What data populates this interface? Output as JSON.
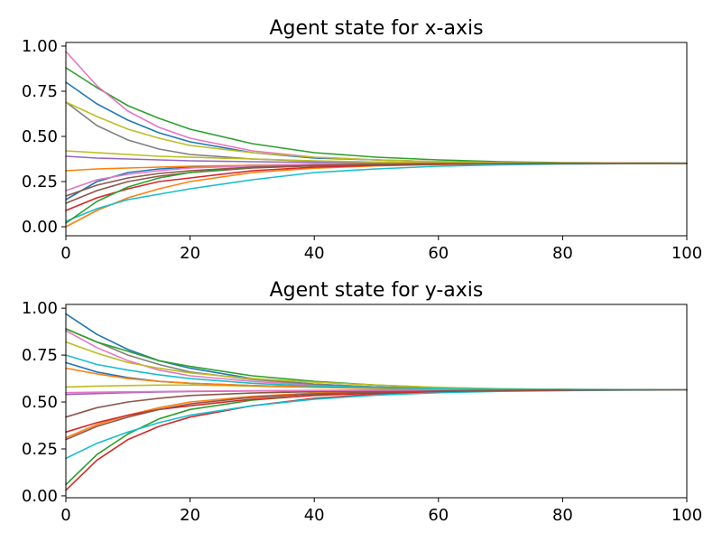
{
  "palette": [
    "#1f77b4",
    "#ff7f0e",
    "#2ca02c",
    "#d62728",
    "#9467bd",
    "#8c564b",
    "#e377c2",
    "#7f7f7f",
    "#bcbd22",
    "#17becf"
  ],
  "chart_data": [
    {
      "type": "line",
      "title": "Agent state for x-axis",
      "xlabel": "",
      "ylabel": "",
      "xlim": [
        0,
        100
      ],
      "ylim": [
        -0.05,
        1.02
      ],
      "xticks": [
        0,
        20,
        40,
        60,
        80,
        100
      ],
      "xtick_labels": [
        "0",
        "20",
        "40",
        "60",
        "80",
        "100"
      ],
      "yticks": [
        0,
        0.25,
        0.5,
        0.75,
        1.0
      ],
      "ytick_labels": [
        "0.00",
        "0.25",
        "0.50",
        "0.75",
        "1.00"
      ],
      "grid": false,
      "x": [
        0,
        5,
        10,
        15,
        20,
        30,
        40,
        50,
        60,
        70,
        80,
        90,
        100
      ],
      "series": [
        {
          "color": "#1f77b4",
          "values": [
            0.8,
            0.68,
            0.59,
            0.52,
            0.47,
            0.41,
            0.38,
            0.37,
            0.36,
            0.355,
            0.353,
            0.352,
            0.351
          ]
        },
        {
          "color": "#ff7f0e",
          "values": [
            0.0,
            0.09,
            0.16,
            0.21,
            0.25,
            0.3,
            0.324,
            0.337,
            0.344,
            0.348,
            0.35,
            0.351,
            0.351
          ]
        },
        {
          "color": "#2ca02c",
          "values": [
            0.88,
            0.77,
            0.67,
            0.6,
            0.54,
            0.46,
            0.41,
            0.385,
            0.37,
            0.36,
            0.355,
            0.353,
            0.352
          ]
        },
        {
          "color": "#d62728",
          "values": [
            0.09,
            0.16,
            0.21,
            0.25,
            0.27,
            0.31,
            0.33,
            0.34,
            0.346,
            0.349,
            0.35,
            0.351,
            0.351
          ]
        },
        {
          "color": "#9467bd",
          "values": [
            0.39,
            0.38,
            0.375,
            0.37,
            0.365,
            0.36,
            0.356,
            0.354,
            0.352,
            0.352,
            0.351,
            0.351,
            0.351
          ]
        },
        {
          "color": "#8c564b",
          "values": [
            0.13,
            0.2,
            0.25,
            0.28,
            0.3,
            0.325,
            0.337,
            0.344,
            0.347,
            0.349,
            0.35,
            0.351,
            0.351
          ]
        },
        {
          "color": "#e377c2",
          "values": [
            0.97,
            0.78,
            0.64,
            0.55,
            0.49,
            0.42,
            0.385,
            0.37,
            0.36,
            0.355,
            0.353,
            0.352,
            0.351
          ]
        },
        {
          "color": "#7f7f7f",
          "values": [
            0.69,
            0.56,
            0.48,
            0.43,
            0.4,
            0.375,
            0.363,
            0.357,
            0.354,
            0.352,
            0.352,
            0.351,
            0.351
          ]
        },
        {
          "color": "#bcbd22",
          "values": [
            0.42,
            0.41,
            0.4,
            0.39,
            0.385,
            0.375,
            0.365,
            0.358,
            0.355,
            0.353,
            0.352,
            0.351,
            0.351
          ]
        },
        {
          "color": "#17becf",
          "values": [
            0.03,
            0.1,
            0.15,
            0.18,
            0.21,
            0.26,
            0.3,
            0.32,
            0.335,
            0.343,
            0.347,
            0.349,
            0.35
          ]
        },
        {
          "color": "#1f77b4",
          "values": [
            0.15,
            0.25,
            0.3,
            0.32,
            0.33,
            0.34,
            0.345,
            0.348,
            0.35,
            0.35,
            0.351,
            0.351,
            0.351
          ]
        },
        {
          "color": "#ff7f0e",
          "values": [
            0.31,
            0.32,
            0.325,
            0.33,
            0.335,
            0.34,
            0.345,
            0.348,
            0.35,
            0.35,
            0.351,
            0.351,
            0.351
          ]
        },
        {
          "color": "#2ca02c",
          "values": [
            0.02,
            0.14,
            0.22,
            0.27,
            0.3,
            0.33,
            0.342,
            0.347,
            0.349,
            0.35,
            0.351,
            0.351,
            0.351
          ]
        },
        {
          "color": "#e377c2",
          "values": [
            0.2,
            0.26,
            0.29,
            0.31,
            0.325,
            0.337,
            0.344,
            0.348,
            0.35,
            0.35,
            0.351,
            0.351,
            0.351
          ]
        },
        {
          "color": "#bcbd22",
          "values": [
            0.69,
            0.61,
            0.54,
            0.49,
            0.45,
            0.41,
            0.385,
            0.37,
            0.36,
            0.355,
            0.353,
            0.352,
            0.351
          ]
        },
        {
          "color": "#8c564b",
          "values": [
            0.17,
            0.23,
            0.27,
            0.295,
            0.31,
            0.33,
            0.34,
            0.346,
            0.349,
            0.35,
            0.351,
            0.351,
            0.351
          ]
        }
      ]
    },
    {
      "type": "line",
      "title": "Agent state for y-axis",
      "xlabel": "",
      "ylabel": "",
      "xlim": [
        0,
        100
      ],
      "ylim": [
        -0.01,
        1.02
      ],
      "xticks": [
        0,
        20,
        40,
        60,
        80,
        100
      ],
      "xtick_labels": [
        "0",
        "20",
        "40",
        "60",
        "80",
        "100"
      ],
      "yticks": [
        0,
        0.25,
        0.5,
        0.75,
        1.0
      ],
      "ytick_labels": [
        "0.00",
        "0.25",
        "0.50",
        "0.75",
        "1.00"
      ],
      "grid": false,
      "x": [
        0,
        5,
        10,
        15,
        20,
        30,
        40,
        50,
        60,
        70,
        80,
        90,
        100
      ],
      "series": [
        {
          "color": "#1f77b4",
          "values": [
            0.97,
            0.86,
            0.78,
            0.72,
            0.68,
            0.625,
            0.595,
            0.58,
            0.572,
            0.568,
            0.566,
            0.565,
            0.565
          ]
        },
        {
          "color": "#ff7f0e",
          "values": [
            0.31,
            0.38,
            0.43,
            0.47,
            0.5,
            0.53,
            0.548,
            0.556,
            0.561,
            0.563,
            0.564,
            0.565,
            0.565
          ]
        },
        {
          "color": "#2ca02c",
          "values": [
            0.06,
            0.22,
            0.33,
            0.41,
            0.46,
            0.51,
            0.537,
            0.551,
            0.558,
            0.562,
            0.564,
            0.565,
            0.565
          ]
        },
        {
          "color": "#d62728",
          "values": [
            0.03,
            0.19,
            0.3,
            0.37,
            0.42,
            0.48,
            0.52,
            0.542,
            0.554,
            0.56,
            0.563,
            0.564,
            0.565
          ]
        },
        {
          "color": "#9467bd",
          "values": [
            0.54,
            0.545,
            0.55,
            0.553,
            0.556,
            0.559,
            0.561,
            0.563,
            0.564,
            0.564,
            0.565,
            0.565,
            0.565
          ]
        },
        {
          "color": "#8c564b",
          "values": [
            0.42,
            0.47,
            0.5,
            0.52,
            0.535,
            0.548,
            0.555,
            0.559,
            0.562,
            0.563,
            0.564,
            0.565,
            0.565
          ]
        },
        {
          "color": "#e377c2",
          "values": [
            0.88,
            0.79,
            0.72,
            0.67,
            0.64,
            0.61,
            0.59,
            0.578,
            0.571,
            0.568,
            0.566,
            0.565,
            0.565
          ]
        },
        {
          "color": "#7f7f7f",
          "values": [
            0.89,
            0.82,
            0.75,
            0.7,
            0.66,
            0.62,
            0.595,
            0.58,
            0.572,
            0.568,
            0.566,
            0.565,
            0.565
          ]
        },
        {
          "color": "#bcbd22",
          "values": [
            0.58,
            0.585,
            0.588,
            0.59,
            0.59,
            0.585,
            0.578,
            0.572,
            0.568,
            0.566,
            0.565,
            0.565,
            0.565
          ]
        },
        {
          "color": "#17becf",
          "values": [
            0.2,
            0.28,
            0.34,
            0.39,
            0.43,
            0.48,
            0.515,
            0.537,
            0.55,
            0.557,
            0.561,
            0.563,
            0.564
          ]
        },
        {
          "color": "#1f77b4",
          "values": [
            0.71,
            0.66,
            0.63,
            0.61,
            0.6,
            0.588,
            0.58,
            0.574,
            0.57,
            0.567,
            0.566,
            0.565,
            0.565
          ]
        },
        {
          "color": "#ff7f0e",
          "values": [
            0.68,
            0.65,
            0.625,
            0.61,
            0.6,
            0.588,
            0.58,
            0.574,
            0.57,
            0.567,
            0.566,
            0.565,
            0.565
          ]
        },
        {
          "color": "#2ca02c",
          "values": [
            0.89,
            0.82,
            0.77,
            0.72,
            0.69,
            0.64,
            0.61,
            0.59,
            0.577,
            0.57,
            0.567,
            0.566,
            0.565
          ]
        },
        {
          "color": "#d62728",
          "values": [
            0.34,
            0.39,
            0.43,
            0.46,
            0.48,
            0.515,
            0.535,
            0.548,
            0.556,
            0.561,
            0.563,
            0.564,
            0.565
          ]
        },
        {
          "color": "#e377c2",
          "values": [
            0.55,
            0.552,
            0.554,
            0.556,
            0.558,
            0.56,
            0.562,
            0.563,
            0.564,
            0.564,
            0.565,
            0.565,
            0.565
          ]
        },
        {
          "color": "#bcbd22",
          "values": [
            0.82,
            0.76,
            0.71,
            0.68,
            0.655,
            0.625,
            0.605,
            0.59,
            0.578,
            0.571,
            0.567,
            0.566,
            0.565
          ]
        },
        {
          "color": "#17becf",
          "values": [
            0.75,
            0.7,
            0.67,
            0.645,
            0.625,
            0.6,
            0.585,
            0.577,
            0.571,
            0.568,
            0.566,
            0.565,
            0.565
          ]
        },
        {
          "color": "#8c564b",
          "values": [
            0.3,
            0.37,
            0.42,
            0.46,
            0.49,
            0.525,
            0.543,
            0.553,
            0.559,
            0.562,
            0.564,
            0.565,
            0.565
          ]
        }
      ]
    }
  ]
}
